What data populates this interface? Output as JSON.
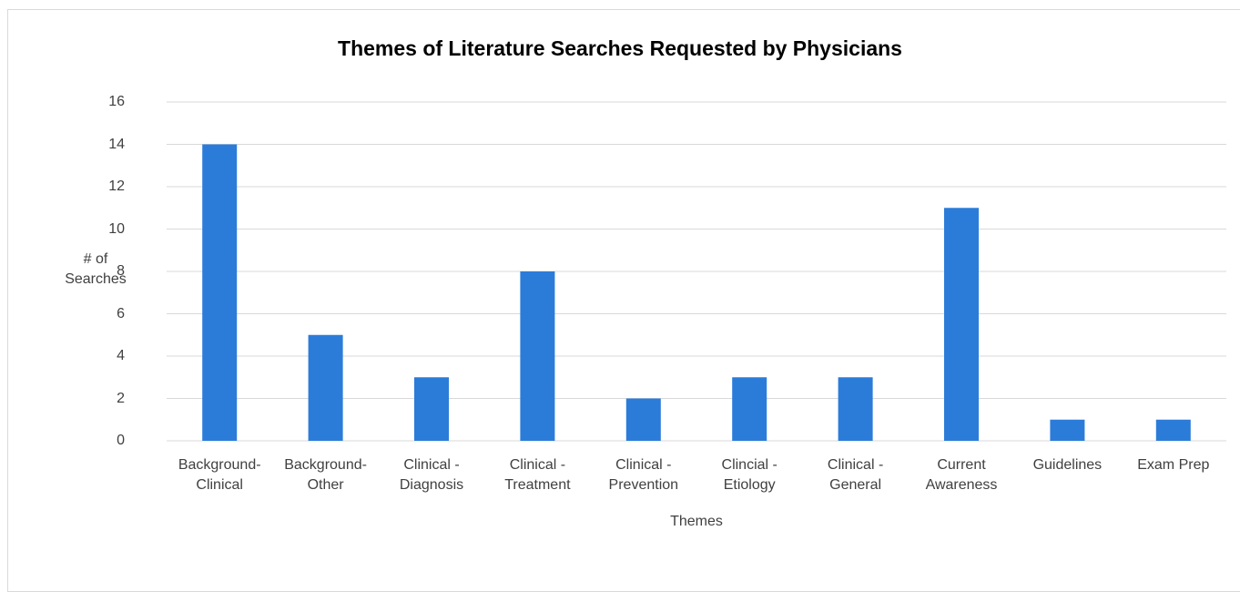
{
  "chart_data": {
    "type": "bar",
    "title": "Themes of Literature Searches Requested by Physicians",
    "x_label": "Themes",
    "y_label": "# of\nSearches",
    "categories": [
      "Background-\nClinical",
      "Background-\nOther",
      "Clinical -\nDiagnosis",
      "Clinical -\nTreatment",
      "Clinical -\nPrevention",
      "Clincial -\nEtiology",
      "Clinical -\nGeneral",
      "Current\nAwareness",
      "Guidelines",
      "Exam Prep"
    ],
    "values": [
      14,
      5,
      3,
      8,
      2,
      3,
      3,
      11,
      1,
      1
    ],
    "color": "#2b7cd9",
    "ylim": [
      0,
      16
    ],
    "yticks": [
      0,
      2,
      4,
      6,
      8,
      10,
      12,
      14,
      16
    ],
    "grid": true
  }
}
